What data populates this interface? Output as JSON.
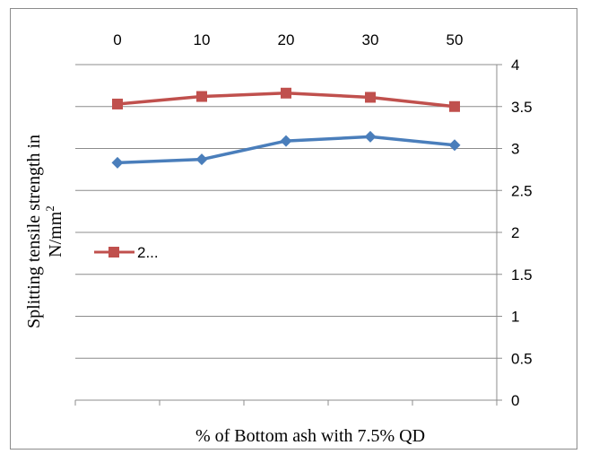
{
  "chart_data": {
    "type": "line",
    "categories": [
      "0",
      "10",
      "20",
      "30",
      "50"
    ],
    "series": [
      {
        "name": "2...",
        "values": [
          3.53,
          3.62,
          3.66,
          3.61,
          3.5
        ],
        "color": "#c0504d",
        "marker": "square"
      },
      {
        "values": [
          2.83,
          2.87,
          3.09,
          3.14,
          3.04
        ],
        "color": "#4a7ebb",
        "marker": "diamond"
      }
    ],
    "xlabel": "% of Bottom ash with 7.5% QD",
    "ylabel_line1": "Splitting tensile  strength in",
    "ylabel_line2": "N/mm",
    "ylabel_sup": "2",
    "ylim": [
      0,
      4
    ],
    "yticks": [
      "0",
      "0.5",
      "1",
      "1.5",
      "2",
      "2.5",
      "3",
      "3.5",
      "4"
    ],
    "x_axis_position": "top",
    "y_axis_position": "right",
    "grid": true,
    "legend_position": "left-middle"
  }
}
